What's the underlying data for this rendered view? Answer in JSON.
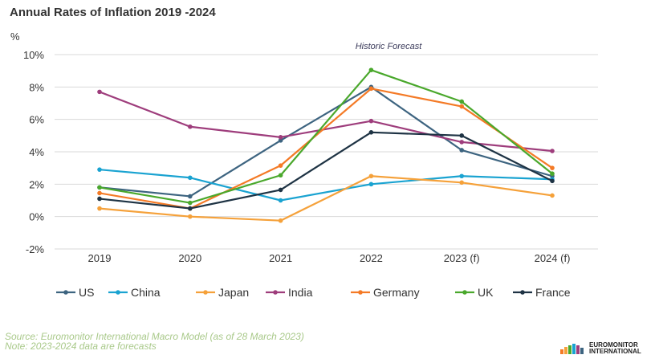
{
  "chart_data": {
    "type": "line",
    "title": "Annual Rates of Inflation 2019 -2024",
    "ylabel": "%",
    "annotation": "Historic Forecast",
    "categories": [
      "2019",
      "2020",
      "2021",
      "2022",
      "2023 (f)",
      "2024 (f)"
    ],
    "ylim": [
      -2,
      10
    ],
    "yticks": [
      -2,
      0,
      2,
      4,
      6,
      8,
      10
    ],
    "ytick_labels": [
      "-2%",
      "0%",
      "2%",
      "4%",
      "6%",
      "8%",
      "10%"
    ],
    "grid": true,
    "legend_position": "bottom",
    "series": [
      {
        "name": "US",
        "color": "#3d6480",
        "values": [
          1.8,
          1.25,
          4.7,
          8.0,
          4.1,
          2.5
        ]
      },
      {
        "name": "China",
        "color": "#1aa3d1",
        "values": [
          2.9,
          2.4,
          1.0,
          2.0,
          2.5,
          2.3
        ]
      },
      {
        "name": "Japan",
        "color": "#f5a13a",
        "values": [
          0.5,
          0.0,
          -0.25,
          2.5,
          2.1,
          1.3
        ]
      },
      {
        "name": "India",
        "color": "#9e3d7c",
        "values": [
          7.7,
          5.55,
          4.9,
          5.9,
          4.6,
          4.05
        ]
      },
      {
        "name": "Germany",
        "color": "#f47a26",
        "values": [
          1.45,
          0.5,
          3.15,
          7.9,
          6.8,
          3.0
        ]
      },
      {
        "name": "UK",
        "color": "#4aa82c",
        "values": [
          1.8,
          0.85,
          2.55,
          9.05,
          7.1,
          2.65
        ]
      },
      {
        "name": "France",
        "color": "#1e3344",
        "values": [
          1.1,
          0.5,
          1.65,
          5.2,
          5.0,
          2.2
        ]
      }
    ]
  },
  "footer": {
    "source": "Source: Euromonitor International Macro Model (as of 28 March 2023)",
    "note": "Note: 2023-2024 data are forecasts"
  },
  "logo": {
    "line1": "EUROMONITOR",
    "line2": "INTERNATIONAL"
  }
}
